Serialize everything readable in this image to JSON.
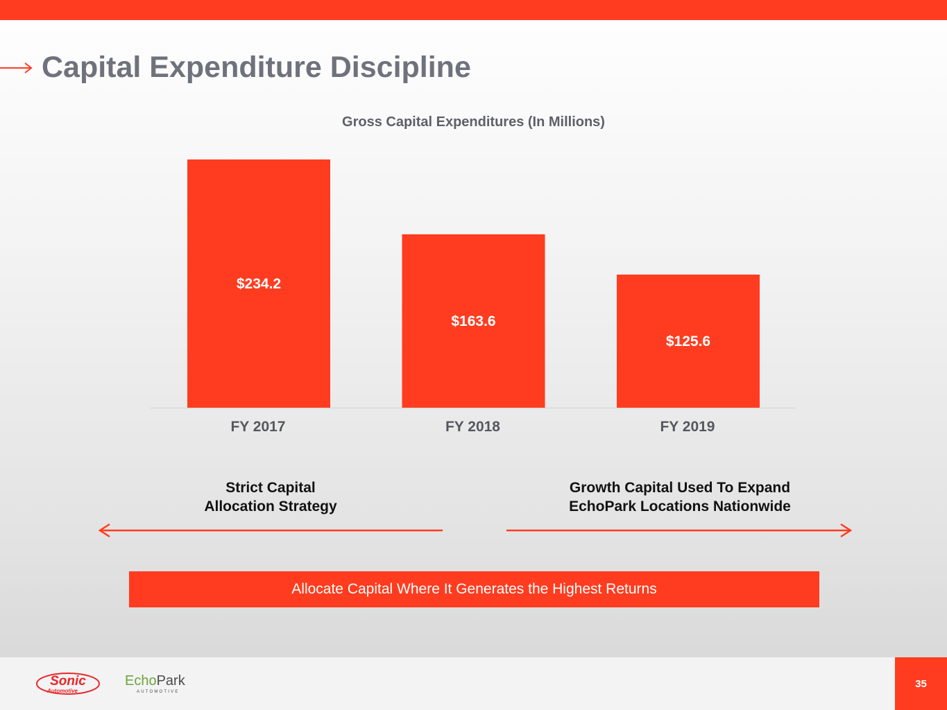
{
  "slide": {
    "title": "Capital Expenditure Discipline",
    "page_number": "35"
  },
  "chart_data": {
    "type": "bar",
    "title": "Gross Capital Expenditures (In Millions)",
    "categories": [
      "FY 2017",
      "FY 2018",
      "FY 2019"
    ],
    "values": [
      234.2,
      163.6,
      125.6
    ],
    "data_labels": [
      "$234.2",
      "$163.6",
      "$125.6"
    ],
    "xlabel": "",
    "ylabel": "",
    "ylim": [
      0,
      234.2
    ],
    "grid": false,
    "legend": "none",
    "bar_color": "#ff3c1f"
  },
  "captions": {
    "left": {
      "line1": "Strict Capital",
      "line2": "Allocation Strategy"
    },
    "right": {
      "line1": "Growth Capital Used To Expand",
      "line2": "EchoPark Locations Nationwide"
    }
  },
  "banner": {
    "text": "Allocate Capital Where It Generates the Highest Returns"
  },
  "logos": {
    "sonic": {
      "main": "Sonic",
      "sub": "Automotive"
    },
    "echopark": {
      "main_part1": "Echo",
      "main_part2": "Park",
      "sub": "AUTOMOTIVE"
    }
  },
  "colors": {
    "accent": "#ff3c1f",
    "title_gray": "#6e727c",
    "echopark_green": "#6aa53a"
  }
}
